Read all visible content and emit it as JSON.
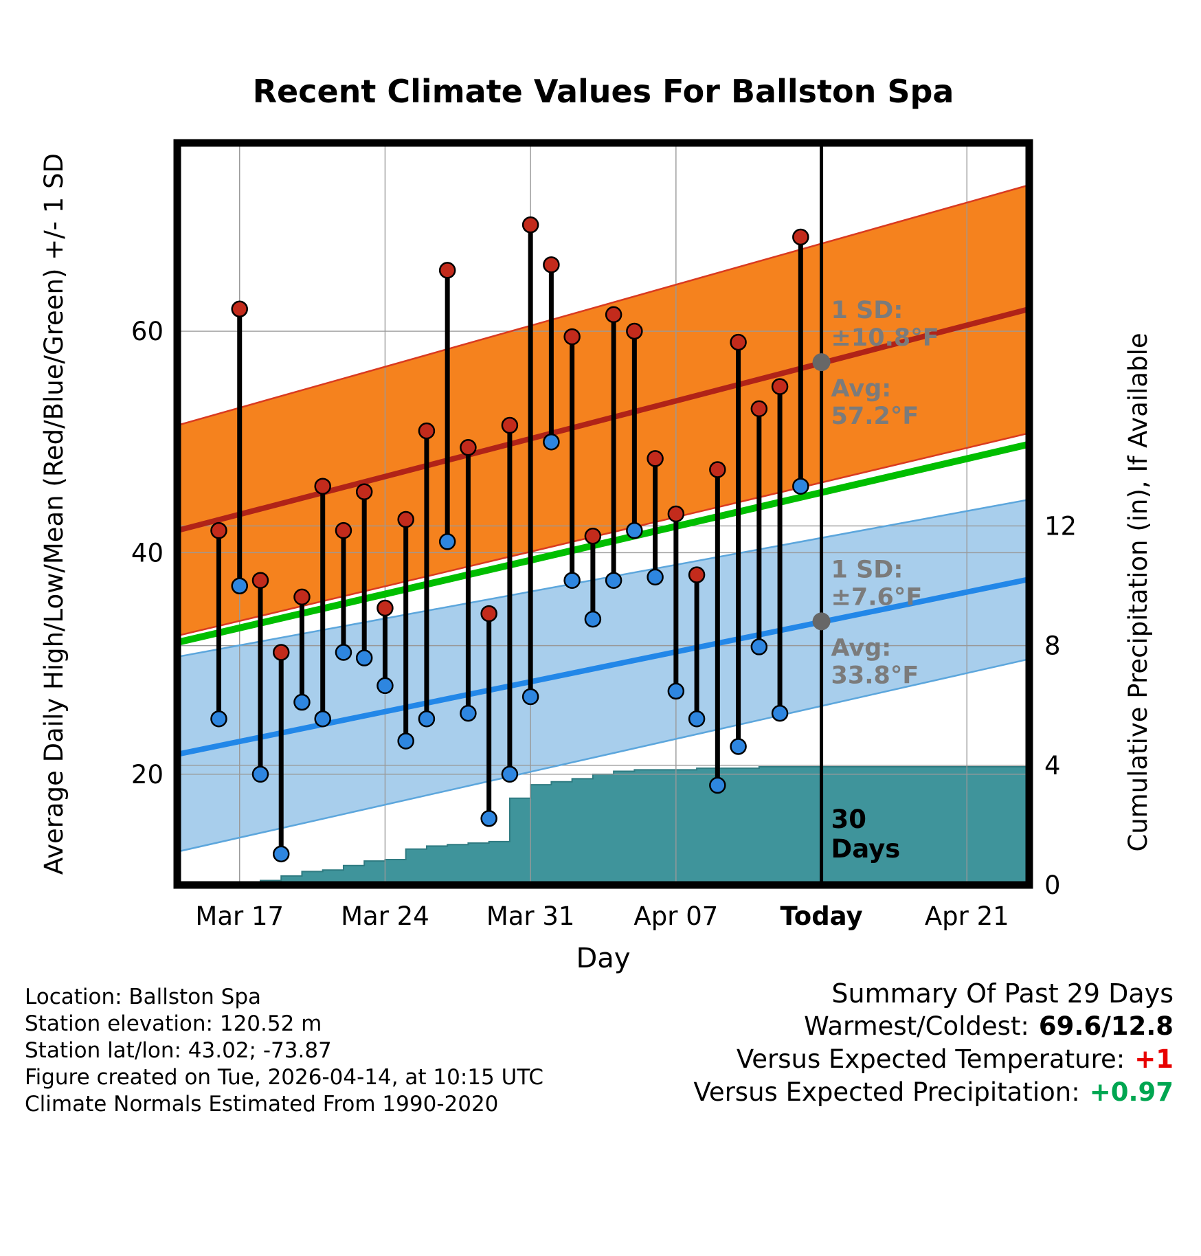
{
  "title": "Recent Climate Values For Ballston Spa",
  "chart_data": {
    "type": "line",
    "subtype": "daily-high-low-whiskers-with-normal-bands-and-cumulative-precip",
    "title": "Recent Climate Values For Ballston Spa",
    "xlabel": "Day",
    "ylabel_left": "Average Daily High/Low/Mean (Red/Blue/Green) +/- 1 SD",
    "ylabel_right": "Cumulative Precipitation (in), If Available",
    "x_axis": {
      "range_days": [
        0,
        41
      ],
      "ticks": [
        {
          "day": 3,
          "label": "Mar 17",
          "bold": false
        },
        {
          "day": 10,
          "label": "Mar 24",
          "bold": false
        },
        {
          "day": 17,
          "label": "Mar 31",
          "bold": false
        },
        {
          "day": 24,
          "label": "Apr 07",
          "bold": false
        },
        {
          "day": 31,
          "label": "Today",
          "bold": true
        },
        {
          "day": 38,
          "label": "Apr 21",
          "bold": false
        }
      ]
    },
    "temp_axis": {
      "range": [
        10,
        77
      ],
      "tick_values": [
        20,
        40,
        60
      ]
    },
    "precip_axis": {
      "range": [
        0,
        24.8
      ],
      "tick_values": [
        0,
        4,
        8,
        12
      ]
    },
    "today_day": 31,
    "daily": {
      "records": [
        {
          "day": 2,
          "date": "Mar 16",
          "high": 42,
          "low": 25
        },
        {
          "day": 3,
          "date": "Mar 17",
          "high": 62,
          "low": 37
        },
        {
          "day": 4,
          "date": "Mar 18",
          "high": 37.5,
          "low": 20
        },
        {
          "day": 5,
          "date": "Mar 19",
          "high": 31,
          "low": 12.8
        },
        {
          "day": 6,
          "date": "Mar 20",
          "high": 36,
          "low": 26.5
        },
        {
          "day": 7,
          "date": "Mar 21",
          "high": 46,
          "low": 25
        },
        {
          "day": 8,
          "date": "Mar 22",
          "high": 42,
          "low": 31
        },
        {
          "day": 9,
          "date": "Mar 23",
          "high": 45.5,
          "low": 30.5
        },
        {
          "day": 10,
          "date": "Mar 24",
          "high": 35,
          "low": 28
        },
        {
          "day": 11,
          "date": "Mar 25",
          "high": 43,
          "low": 23
        },
        {
          "day": 12,
          "date": "Mar 26",
          "high": 51,
          "low": 25
        },
        {
          "day": 13,
          "date": "Mar 27",
          "high": 65.5,
          "low": 41
        },
        {
          "day": 14,
          "date": "Mar 28",
          "high": 49.5,
          "low": 25.5
        },
        {
          "day": 15,
          "date": "Mar 29",
          "high": 34.5,
          "low": 16
        },
        {
          "day": 16,
          "date": "Mar 30",
          "high": 51.5,
          "low": 20
        },
        {
          "day": 17,
          "date": "Mar 31",
          "high": 69.6,
          "low": 27
        },
        {
          "day": 18,
          "date": "Apr 01",
          "high": 66,
          "low": 50
        },
        {
          "day": 19,
          "date": "Apr 02",
          "high": 59.5,
          "low": 37.5
        },
        {
          "day": 20,
          "date": "Apr 03",
          "high": 41.5,
          "low": 34
        },
        {
          "day": 21,
          "date": "Apr 04",
          "high": 61.5,
          "low": 37.5
        },
        {
          "day": 22,
          "date": "Apr 05",
          "high": 60,
          "low": 42
        },
        {
          "day": 23,
          "date": "Apr 06",
          "high": 48.5,
          "low": 37.8
        },
        {
          "day": 24,
          "date": "Apr 07",
          "high": 43.5,
          "low": 27.5
        },
        {
          "day": 25,
          "date": "Apr 08",
          "high": 38,
          "low": 25
        },
        {
          "day": 26,
          "date": "Apr 09",
          "high": 47.5,
          "low": 19
        },
        {
          "day": 27,
          "date": "Apr 10",
          "high": 59,
          "low": 22.5
        },
        {
          "day": 28,
          "date": "Apr 11",
          "high": 53,
          "low": 31.5
        },
        {
          "day": 29,
          "date": "Apr 12",
          "high": 55,
          "low": 25.5
        },
        {
          "day": 30,
          "date": "Apr 13",
          "high": 68.5,
          "low": 46
        }
      ]
    },
    "normals": {
      "domain_days": [
        0,
        41
      ],
      "high_avg": [
        42.0,
        62.0
      ],
      "high_sd": [
        9.5,
        11.2
      ],
      "low_avg": [
        21.8,
        37.6
      ],
      "low_sd": [
        8.8,
        7.2
      ],
      "mean_avg": [
        31.9,
        49.8
      ],
      "at_today": {
        "high_avg": 57.2,
        "high_sd": 10.8,
        "low_avg": 33.8,
        "low_sd": 7.6
      }
    },
    "precip_cumulative": {
      "points": [
        [
          1,
          0.02
        ],
        [
          2,
          0.05
        ],
        [
          3,
          0.1
        ],
        [
          4,
          0.15
        ],
        [
          5,
          0.3
        ],
        [
          6,
          0.45
        ],
        [
          7,
          0.5
        ],
        [
          8,
          0.65
        ],
        [
          9,
          0.8
        ],
        [
          10,
          0.85
        ],
        [
          11,
          1.2
        ],
        [
          12,
          1.3
        ],
        [
          13,
          1.35
        ],
        [
          14,
          1.4
        ],
        [
          15,
          1.45
        ],
        [
          16,
          2.9
        ],
        [
          17,
          3.35
        ],
        [
          18,
          3.45
        ],
        [
          19,
          3.55
        ],
        [
          20,
          3.7
        ],
        [
          21,
          3.8
        ],
        [
          22,
          3.85
        ],
        [
          23,
          3.85
        ],
        [
          24,
          3.85
        ],
        [
          25,
          3.9
        ],
        [
          26,
          3.9
        ],
        [
          27,
          3.9
        ],
        [
          28,
          3.95
        ],
        [
          29,
          3.95
        ],
        [
          30,
          3.95
        ],
        [
          31,
          3.95
        ]
      ]
    },
    "annotations": {
      "high": {
        "lines": [
          "1 SD:",
          "±10.8°F",
          "Avg:",
          "57.2°F"
        ],
        "avg_temp": 57.2
      },
      "low": {
        "lines": [
          "1 SD:",
          "±7.6°F",
          "Avg:",
          "33.8°F"
        ],
        "avg_temp": 33.8
      },
      "duration": {
        "lines": [
          "30",
          "Days"
        ]
      }
    },
    "colors": {
      "high_band_fill": "#F5821E",
      "high_band_edge": "#D93A20",
      "high_center": "#B02318",
      "low_band_fill": "#A8CEEC",
      "low_band_edge": "#5CA6DC",
      "low_center": "#2287E8",
      "mean_line": "#00BE00",
      "high_dot": "#C32B1C",
      "low_dot": "#2E86E0",
      "precip_fill": "#3F949B",
      "precip_edge": "#2F7B81",
      "grid": "#999999",
      "annotation": "#7B7B7B",
      "avg_dot": "#676767",
      "today_line": "#000000",
      "border": "#000000"
    }
  },
  "footer": {
    "lines": [
      "Location: Ballston Spa",
      "Station elevation: 120.52 m",
      "Station lat/lon: 43.02; -73.87",
      "Figure created on Tue, 2026-04-14, at 10:15 UTC",
      "Climate Normals Estimated From 1990-2020"
    ]
  },
  "summary": {
    "heading": "Summary Of Past 29 Days",
    "rows": [
      {
        "label": "Warmest/Coldest:",
        "value": "69.6/12.8",
        "color": "#000000"
      },
      {
        "label": "Versus Expected Temperature:",
        "value": "+1",
        "color": "#E80000"
      },
      {
        "label": "Versus Expected Precipitation:",
        "value": "+0.97",
        "color": "#00A651"
      }
    ]
  }
}
